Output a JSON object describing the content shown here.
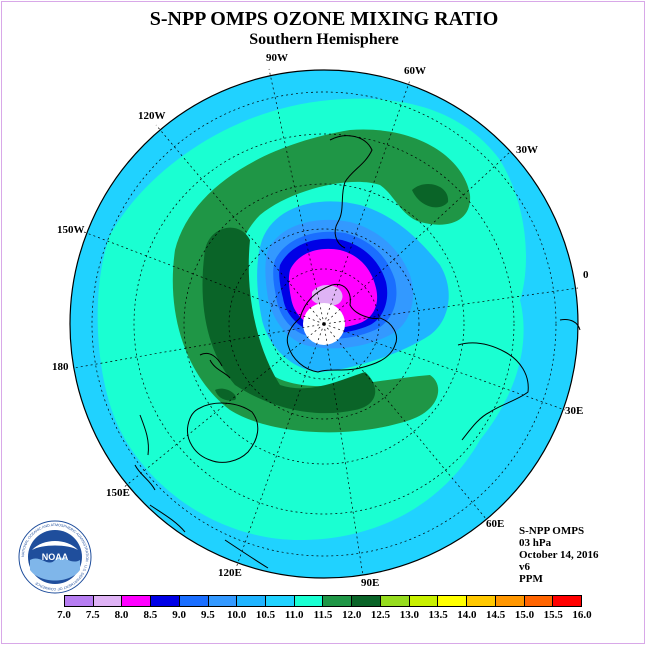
{
  "title": "S-NPP OMPS OZONE MIXING RATIO",
  "subtitle": "Southern Hemisphere",
  "longitude_labels": [
    "90W",
    "60W",
    "30W",
    "0",
    "30E",
    "60E",
    "90E",
    "120E",
    "150E",
    "180",
    "150W",
    "120W"
  ],
  "info": {
    "instrument": "S-NPP OMPS",
    "level": "03 hPa",
    "date": "October 14, 2016",
    "version": "v6",
    "units": "PPM"
  },
  "logo": {
    "label": "NOAA",
    "ring_text": "NATIONAL OCEANIC AND ATMOSPHERIC ADMINISTRATION · U.S. DEPARTMENT OF COMMERCE"
  },
  "colorbar": {
    "ticks": [
      "7.0",
      "7.5",
      "8.0",
      "8.5",
      "9.0",
      "9.5",
      "10.0",
      "10.5",
      "11.0",
      "11.5",
      "12.0",
      "12.5",
      "13.0",
      "13.5",
      "14.0",
      "14.5",
      "15.0",
      "15.5",
      "16.0"
    ],
    "colors": [
      "#b77ef2",
      "#dfb3f5",
      "#ff00ff",
      "#0000e6",
      "#1a6eff",
      "#3399ff",
      "#1fb4ff",
      "#20d2ff",
      "#1affd2",
      "#1f9646",
      "#0a6428",
      "#96dc1e",
      "#c8f000",
      "#ffff00",
      "#ffc800",
      "#ff9600",
      "#ff6400",
      "#ff0000",
      "#8c5a3c"
    ]
  },
  "map_colors": {
    "ocean_outer": "#20d2ff",
    "ring_light": "#1affd2",
    "band_mid": "#1f9646",
    "band_dark": "#0a6428",
    "inner_1": "#1fb4ff",
    "inner_2": "#3399ff",
    "inner_3": "#1a6eff",
    "inner_4": "#0000e6",
    "core": "#ff00ff",
    "core_light": "#dfb3f5",
    "pole": "#ffffff"
  }
}
